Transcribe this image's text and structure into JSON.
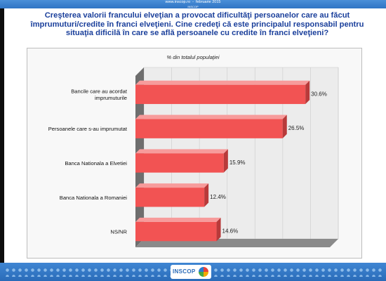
{
  "header": {
    "website": "www.inscop.ro",
    "date": "februarie 2015",
    "sub": "INSCOP"
  },
  "heading": {
    "line1": "Creşterea valorii francului elveţian a provocat dificultăţi persoanelor care au făcut",
    "line2": "împrumuturi/credite în franci elveţieni. Cine credeţi că este principalul responsabil pentru",
    "line3": "situaţia dificilă în care se află persoanele cu credite în franci elveţieni?"
  },
  "footer": {
    "logo_text": "INSCOP"
  },
  "colors": {
    "bar": "#f25353",
    "bar_top": "#f79b9b",
    "bar_dark": "#b83a3a",
    "band": "#2f74c4",
    "heading": "#1a3f9b"
  },
  "chart_data": {
    "type": "bar",
    "orientation": "horizontal",
    "title": "% din totalul populaţiei",
    "categories": [
      [
        "Bancile care au acordat",
        "imprumuturile"
      ],
      [
        "Persoanele care s-au imprumutat"
      ],
      [
        "Banca Nationala a Elvetiei"
      ],
      [
        "Banca Nationala a Romaniei"
      ],
      [
        "NS/NR"
      ]
    ],
    "values": [
      30.6,
      26.5,
      15.9,
      12.4,
      14.6
    ],
    "value_labels": [
      "30.6%",
      "26.5%",
      "15.9%",
      "12.4%",
      "14.6%"
    ],
    "xlim": [
      0,
      35
    ],
    "grid": true,
    "legend": "none"
  }
}
